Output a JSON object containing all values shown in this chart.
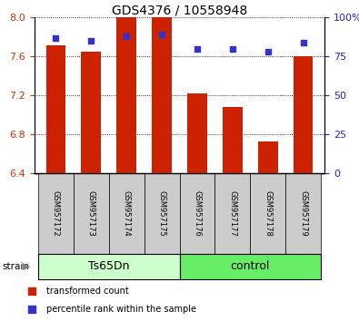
{
  "title": "GDS4376 / 10558948",
  "samples": [
    "GSM957172",
    "GSM957173",
    "GSM957174",
    "GSM957175",
    "GSM957176",
    "GSM957177",
    "GSM957178",
    "GSM957179"
  ],
  "bar_values": [
    7.72,
    7.65,
    8.0,
    8.0,
    7.22,
    7.08,
    6.73,
    7.6
  ],
  "percentile_values": [
    87,
    85,
    88,
    89,
    80,
    80,
    78,
    84
  ],
  "ymin": 6.4,
  "ymax": 8.0,
  "yticks": [
    6.4,
    6.8,
    7.2,
    7.6,
    8.0
  ],
  "right_yticks": [
    0,
    25,
    50,
    75,
    100
  ],
  "bar_color": "#cc2200",
  "percentile_color": "#3333cc",
  "bar_width": 0.55,
  "group1_label": "Ts65Dn",
  "group2_label": "control",
  "group1_indices": [
    0,
    1,
    2,
    3
  ],
  "group2_indices": [
    4,
    5,
    6,
    7
  ],
  "group1_color": "#ccffcc",
  "group2_color": "#66ee66",
  "strain_label": "strain",
  "legend_bar_label": "transformed count",
  "legend_pct_label": "percentile rank within the sample",
  "left_tick_color": "#cc3300",
  "right_tick_color": "#2222cc",
  "label_box_color": "#cccccc",
  "title_fontsize": 10,
  "tick_fontsize": 8,
  "sample_fontsize": 6,
  "group_fontsize": 9,
  "legend_fontsize": 7
}
